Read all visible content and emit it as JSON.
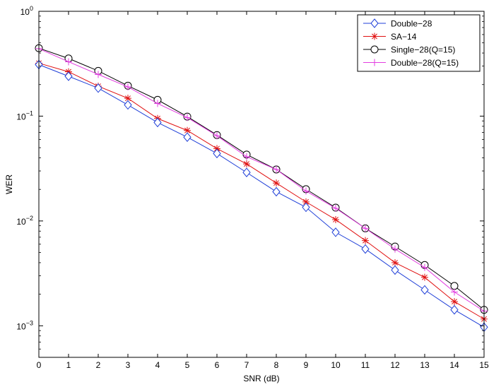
{
  "chart_data": {
    "type": "line",
    "xlabel": "SNR (dB)",
    "ylabel": "WER",
    "x": [
      0,
      1,
      2,
      3,
      4,
      5,
      6,
      7,
      8,
      9,
      10,
      11,
      12,
      13,
      14,
      15
    ],
    "xlim": [
      0,
      15
    ],
    "ylim": [
      0.0005,
      1
    ],
    "yscale": "log",
    "xticks": [
      "0",
      "1",
      "2",
      "3",
      "4",
      "5",
      "6",
      "7",
      "8",
      "9",
      "10",
      "11",
      "12",
      "13",
      "14",
      "15"
    ],
    "yticks": [
      {
        "base": "10",
        "exp": "0",
        "value": 1
      },
      {
        "base": "10",
        "exp": "−1",
        "value": 0.1
      },
      {
        "base": "10",
        "exp": "−2",
        "value": 0.01
      },
      {
        "base": "10",
        "exp": "−3",
        "value": 0.001
      }
    ],
    "grid": false,
    "legend_position": "top-right",
    "series": [
      {
        "name": "Double−28",
        "color": "#1f3fd8",
        "marker": "diamond",
        "values": [
          0.31,
          0.24,
          0.185,
          0.128,
          0.087,
          0.063,
          0.044,
          0.029,
          0.019,
          0.0135,
          0.0078,
          0.0054,
          0.0034,
          0.0022,
          0.00142,
          0.00097
        ]
      },
      {
        "name": "SA−14",
        "color": "#e01010",
        "marker": "asterisk",
        "values": [
          0.32,
          0.265,
          0.193,
          0.148,
          0.095,
          0.073,
          0.049,
          0.035,
          0.023,
          0.0152,
          0.0103,
          0.0065,
          0.004,
          0.0029,
          0.0017,
          0.00116
        ]
      },
      {
        "name": "Single−28(Q=15)",
        "color": "#000000",
        "marker": "circle",
        "values": [
          0.445,
          0.355,
          0.27,
          0.195,
          0.143,
          0.099,
          0.066,
          0.043,
          0.031,
          0.0201,
          0.0134,
          0.0085,
          0.0057,
          0.0038,
          0.0024,
          0.00142
        ]
      },
      {
        "name": "Double−28(Q=15)",
        "color": "#e23ce0",
        "marker": "plus",
        "values": [
          0.44,
          0.33,
          0.25,
          0.19,
          0.132,
          0.097,
          0.065,
          0.041,
          0.031,
          0.0193,
          0.0132,
          0.0085,
          0.0054,
          0.0036,
          0.0021,
          0.00138
        ]
      }
    ]
  }
}
